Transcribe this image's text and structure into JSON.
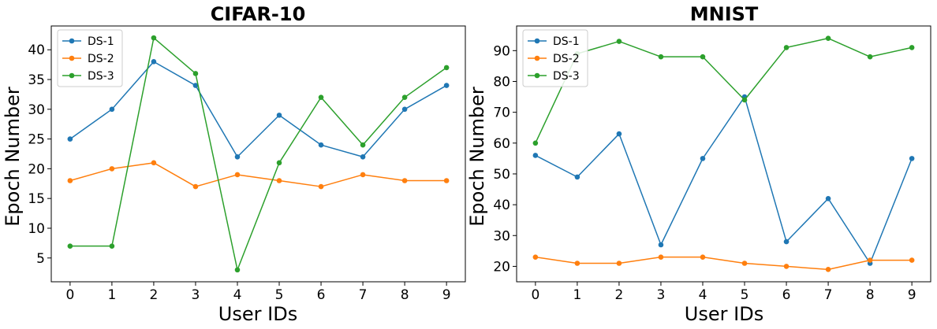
{
  "chart_data": [
    {
      "type": "line",
      "title": "CIFAR-10",
      "xlabel": "User IDs",
      "ylabel": "Epoch Number",
      "x": [
        0,
        1,
        2,
        3,
        4,
        5,
        6,
        7,
        8,
        9
      ],
      "xlim": [
        -0.45,
        9.45
      ],
      "ylim": [
        1.0,
        44.0
      ],
      "xticks": [
        "0",
        "1",
        "2",
        "3",
        "4",
        "5",
        "6",
        "7",
        "8",
        "9"
      ],
      "yticks": [
        5,
        10,
        15,
        20,
        25,
        30,
        35,
        40
      ],
      "grid": false,
      "legend_position": "top-left",
      "series": [
        {
          "name": "DS-1",
          "color": "#1f77b4",
          "values": [
            25,
            30,
            38,
            34,
            22,
            29,
            24,
            22,
            30,
            34
          ]
        },
        {
          "name": "DS-2",
          "color": "#ff7f0e",
          "values": [
            18,
            20,
            21,
            17,
            19,
            18,
            17,
            19,
            18,
            18
          ]
        },
        {
          "name": "DS-3",
          "color": "#2ca02c",
          "values": [
            7,
            7,
            42,
            36,
            3,
            21,
            32,
            24,
            32,
            37
          ]
        }
      ]
    },
    {
      "type": "line",
      "title": "MNIST",
      "xlabel": "User IDs",
      "ylabel": "Epoch Number",
      "x": [
        0,
        1,
        2,
        3,
        4,
        5,
        6,
        7,
        8,
        9
      ],
      "xlim": [
        -0.45,
        9.45
      ],
      "ylim": [
        15.0,
        98.0
      ],
      "xticks": [
        "0",
        "1",
        "2",
        "3",
        "4",
        "5",
        "6",
        "7",
        "8",
        "9"
      ],
      "yticks": [
        20,
        30,
        40,
        50,
        60,
        70,
        80,
        90
      ],
      "grid": false,
      "legend_position": "top-left",
      "series": [
        {
          "name": "DS-1",
          "color": "#1f77b4",
          "values": [
            56,
            49,
            63,
            27,
            55,
            75,
            28,
            42,
            21,
            55
          ]
        },
        {
          "name": "DS-2",
          "color": "#ff7f0e",
          "values": [
            23,
            21,
            21,
            23,
            23,
            21,
            20,
            19,
            22,
            22
          ]
        },
        {
          "name": "DS-3",
          "color": "#2ca02c",
          "values": [
            60,
            89,
            93,
            88,
            88,
            74,
            91,
            94,
            88,
            91
          ]
        }
      ]
    }
  ]
}
